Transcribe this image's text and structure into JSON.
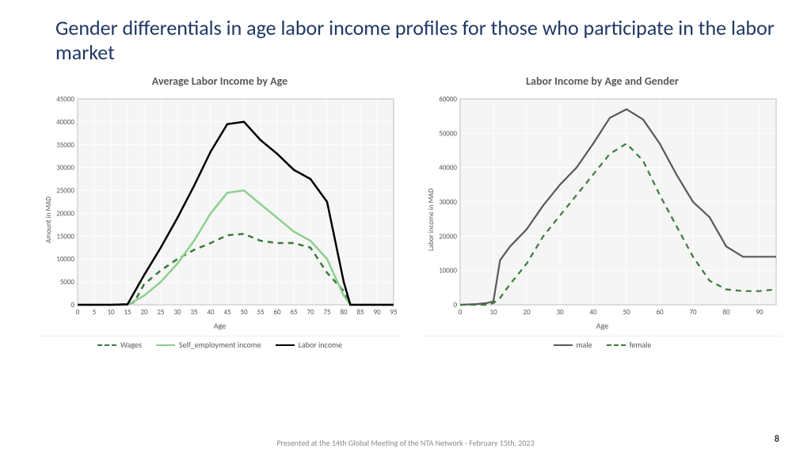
{
  "title": "Gender differentials in age labor income profiles for those who participate in the labor market",
  "footer": "Presented at the 14th Global Meeting of the NTA Network - February 15th, 2023",
  "page_number": "8",
  "chart1": {
    "type": "line",
    "title": "Average Labor Income by Age",
    "xlabel": "Age",
    "ylabel": "Amount in MAD",
    "xlim": [
      0,
      95
    ],
    "xtick_step": 5,
    "ylim": [
      0,
      45000
    ],
    "ytick_step": 5000,
    "background_color": "#f5f5f5",
    "grid_color": "#ffffff",
    "label_fontsize": 10,
    "tick_fontsize": 9,
    "legend_position": "bottom",
    "series": [
      {
        "name": "Wages",
        "color": "#3b7a3b",
        "style": "dashed",
        "width": 2.5,
        "x": [
          0,
          5,
          10,
          15,
          17,
          20,
          25,
          30,
          35,
          40,
          45,
          50,
          55,
          60,
          65,
          70,
          75,
          80,
          82,
          85,
          90,
          95
        ],
        "y": [
          0,
          0,
          0,
          100,
          600,
          4500,
          7500,
          10000,
          12000,
          13500,
          15200,
          15500,
          14000,
          13500,
          13500,
          12500,
          7000,
          3000,
          0,
          0,
          0,
          0
        ]
      },
      {
        "name": "Self_employment income",
        "color": "#8fce8f",
        "style": "solid",
        "width": 2.5,
        "x": [
          0,
          5,
          10,
          15,
          20,
          25,
          30,
          35,
          40,
          45,
          50,
          55,
          60,
          65,
          70,
          75,
          80,
          82,
          85,
          90,
          95
        ],
        "y": [
          0,
          0,
          0,
          0,
          2000,
          5000,
          9000,
          14000,
          20000,
          24500,
          25000,
          22000,
          19000,
          16000,
          14000,
          10000,
          2000,
          0,
          0,
          0,
          0
        ]
      },
      {
        "name": "Labor income",
        "color": "#000000",
        "style": "solid",
        "width": 2.5,
        "x": [
          0,
          5,
          10,
          15,
          20,
          25,
          30,
          35,
          40,
          45,
          50,
          55,
          60,
          65,
          70,
          75,
          80,
          82,
          85,
          90,
          95
        ],
        "y": [
          0,
          0,
          0,
          100,
          6500,
          12500,
          19000,
          26000,
          33500,
          39500,
          40000,
          36000,
          33000,
          29500,
          27500,
          22500,
          5000,
          0,
          0,
          0,
          0
        ]
      }
    ]
  },
  "chart2": {
    "type": "line",
    "title": "Labor Income by Age and Gender",
    "xlabel": "Age",
    "ylabel": "Labor income in MAD",
    "xlim": [
      0,
      95
    ],
    "xtick_step": 10,
    "ylim": [
      0,
      60000
    ],
    "ytick_step": 10000,
    "background_color": "#f5f5f5",
    "grid_color": "#ffffff",
    "label_fontsize": 10,
    "tick_fontsize": 9,
    "legend_position": "bottom",
    "series": [
      {
        "name": "male",
        "color": "#595959",
        "style": "solid",
        "width": 2.2,
        "x": [
          0,
          5,
          8,
          10,
          12,
          15,
          20,
          25,
          30,
          35,
          40,
          45,
          50,
          55,
          60,
          65,
          70,
          75,
          80,
          85,
          90,
          95
        ],
        "y": [
          0,
          200,
          500,
          1000,
          13000,
          17000,
          22000,
          29000,
          35000,
          40000,
          47000,
          54500,
          57000,
          54000,
          47000,
          38000,
          30000,
          25500,
          17000,
          14000,
          14000,
          14000
        ]
      },
      {
        "name": "female",
        "color": "#3b7a3b",
        "style": "dashed",
        "width": 2.2,
        "x": [
          0,
          5,
          8,
          10,
          12,
          15,
          20,
          25,
          30,
          35,
          40,
          45,
          50,
          55,
          60,
          65,
          70,
          75,
          80,
          85,
          90,
          95
        ],
        "y": [
          0,
          0,
          0,
          500,
          2000,
          6000,
          12000,
          20000,
          26000,
          32000,
          38000,
          44000,
          47000,
          42000,
          32000,
          23000,
          14000,
          7000,
          4500,
          4000,
          4000,
          4500
        ]
      }
    ]
  }
}
